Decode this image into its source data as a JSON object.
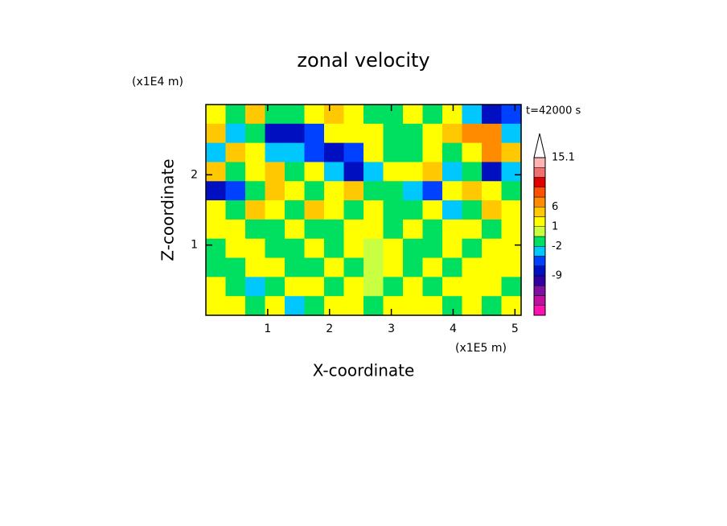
{
  "chart_data": {
    "type": "contour",
    "title": "zonal velocity",
    "x_label": "X-coordinate",
    "y_label": "Z-coordinate",
    "x_unit": "(x1E5 m)",
    "y_unit": "(x1E4 m)",
    "time_label": "t=42000 s",
    "xlim": [
      0,
      5.1
    ],
    "ylim": [
      0,
      3
    ],
    "xticks": [
      1,
      2,
      3,
      4,
      5
    ],
    "yticks": [
      1,
      2
    ],
    "colorbar": {
      "levels": [
        -15,
        -13,
        -11,
        -10,
        -9,
        -7,
        -5,
        -2,
        -1,
        1,
        3,
        6,
        8,
        10,
        12,
        14,
        15.1
      ],
      "colors": [
        "#ff10b0",
        "#c010a0",
        "#8010a0",
        "#3000a0",
        "#0010c0",
        "#0040ff",
        "#00c8ff",
        "#00e060",
        "#c8ff40",
        "#ffff00",
        "#ffc800",
        "#ff8c00",
        "#ff5000",
        "#e00000",
        "#f07070",
        "#ffb4b4"
      ],
      "ticks": [
        -9,
        -2,
        1,
        6,
        15.1
      ]
    },
    "z": [
      [
        2,
        -1.5,
        4,
        -1.5,
        -1.5,
        2,
        4,
        2,
        -1.5,
        -1.5,
        2,
        -1.5,
        2,
        -3,
        -8,
        -6
      ],
      [
        4,
        -3,
        -1.5,
        -8,
        -8,
        -6,
        2,
        2,
        2,
        -1.5,
        -1.5,
        2,
        4,
        7,
        7,
        -3
      ],
      [
        -3,
        4,
        2,
        -3,
        -3,
        -6,
        -8,
        -6,
        2,
        -1.5,
        -1.5,
        2,
        -1.5,
        2,
        7,
        4
      ],
      [
        4,
        -1.5,
        2,
        4,
        -1.5,
        2,
        -3,
        -8,
        -3,
        2,
        2,
        4,
        -3,
        -1.5,
        -8,
        -3
      ],
      [
        -8,
        -6,
        -1.5,
        4,
        2,
        -1.5,
        2,
        4,
        -1.5,
        -1.5,
        -3,
        -6,
        2,
        4,
        2,
        -1.5
      ],
      [
        2,
        -1.5,
        4,
        2,
        -1.5,
        4,
        2,
        -1.5,
        2,
        -1.5,
        -1.5,
        2,
        -3,
        -1.5,
        4,
        2
      ],
      [
        2,
        2,
        -1.5,
        -1.5,
        2,
        -1.5,
        -1.5,
        2,
        2,
        -1.5,
        2,
        -1.5,
        2,
        2,
        -1.5,
        2
      ],
      [
        -1.5,
        2,
        2,
        -1.5,
        -1.5,
        2,
        -1.5,
        2,
        0,
        2,
        -1.5,
        -1.5,
        2,
        -1.5,
        2,
        2
      ],
      [
        -1.5,
        -1.5,
        2,
        2,
        -1.5,
        -1.5,
        2,
        -1.5,
        0,
        2,
        -1.5,
        2,
        -1.5,
        2,
        2,
        2
      ],
      [
        2,
        -1.5,
        -3,
        -1.5,
        2,
        2,
        -1.5,
        2,
        0,
        -1.5,
        2,
        -1.5,
        2,
        2,
        2,
        -1.5
      ],
      [
        2,
        2,
        -1.5,
        2,
        -3,
        -1.5,
        2,
        2,
        -1.5,
        2,
        2,
        2,
        -1.5,
        2,
        -1.5,
        2
      ]
    ]
  }
}
